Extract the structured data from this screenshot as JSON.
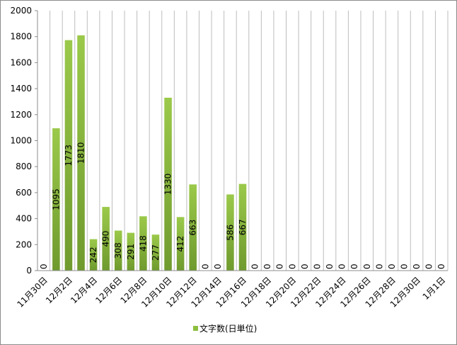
{
  "chart_data": {
    "type": "bar",
    "title": "",
    "xlabel": "",
    "ylabel": "",
    "ylim": [
      0,
      2000
    ],
    "y_ticks": [
      0,
      200,
      400,
      600,
      800,
      1000,
      1200,
      1400,
      1600,
      1800,
      2000
    ],
    "x_tick_labels": [
      "11月30日",
      "12月2日",
      "12月4日",
      "12月6日",
      "12月8日",
      "12月10日",
      "12月12日",
      "12月14日",
      "12月16日",
      "12月18日",
      "12月20日",
      "12月22日",
      "12月24日",
      "12月26日",
      "12月28日",
      "12月30日",
      "1月1日"
    ],
    "series": [
      {
        "name": "文字数(日単位)",
        "color": "#8cbf3f",
        "values": [
          0,
          1095,
          1773,
          1810,
          242,
          490,
          308,
          291,
          418,
          277,
          1330,
          412,
          663,
          0,
          0,
          586,
          667,
          0,
          0,
          0,
          0,
          0,
          0,
          0,
          0,
          0,
          0,
          0,
          0,
          0,
          0,
          0,
          0
        ]
      }
    ],
    "grid": "vertical",
    "legend": "bottom"
  }
}
